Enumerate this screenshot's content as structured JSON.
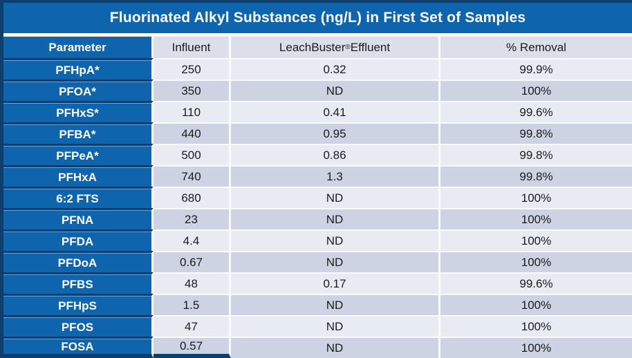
{
  "title": "Fluorinated Alkyl Substances (ng/L) in First Set of Samples",
  "header": {
    "col_parameter": "Parameter",
    "col_influent": "Influent",
    "col_effluent_brand": "LeachBuster",
    "col_effluent_reg": "®",
    "col_effluent_rest": " Effluent",
    "col_removal": "% Removal"
  },
  "colors": {
    "cell_blue": "#0f65ad",
    "border_navy": "#0e3e6d",
    "row_light": "#e9ebf3",
    "row_dark": "#cdd3e2",
    "header_gray": "#dcdfe9",
    "text_dark": "#1b1b1b",
    "text_white": "#ffffff"
  },
  "chart_data": {
    "type": "table",
    "title": "Fluorinated Alkyl Substances (ng/L) in First Set of Samples",
    "units": "ng/L",
    "columns": [
      "Parameter",
      "Influent",
      "LeachBuster® Effluent",
      "% Removal"
    ],
    "rows": [
      [
        "PFHpA*",
        "250",
        "0.32",
        "99.9%"
      ],
      [
        "PFOA*",
        "350",
        "ND",
        "100%"
      ],
      [
        "PFHxS*",
        "110",
        "0.41",
        "99.6%"
      ],
      [
        "PFBA*",
        "440",
        "0.95",
        "99.8%"
      ],
      [
        "PFPeA*",
        "500",
        "0.86",
        "99.8%"
      ],
      [
        "PFHxA",
        "740",
        "1.3",
        "99.8%"
      ],
      [
        "6:2 FTS",
        "680",
        "ND",
        "100%"
      ],
      [
        "PFNA",
        "23",
        "ND",
        "100%"
      ],
      [
        "PFDA",
        "4.4",
        "ND",
        "100%"
      ],
      [
        "PFDoA",
        "0.67",
        "ND",
        "100%"
      ],
      [
        "PFBS",
        "48",
        "0.17",
        "99.6%"
      ],
      [
        "PFHpS",
        "1.5",
        "ND",
        "100%"
      ],
      [
        "PFOS",
        "47",
        "ND",
        "100%"
      ],
      [
        "FOSA",
        "0.57",
        "ND",
        "100%"
      ]
    ]
  }
}
